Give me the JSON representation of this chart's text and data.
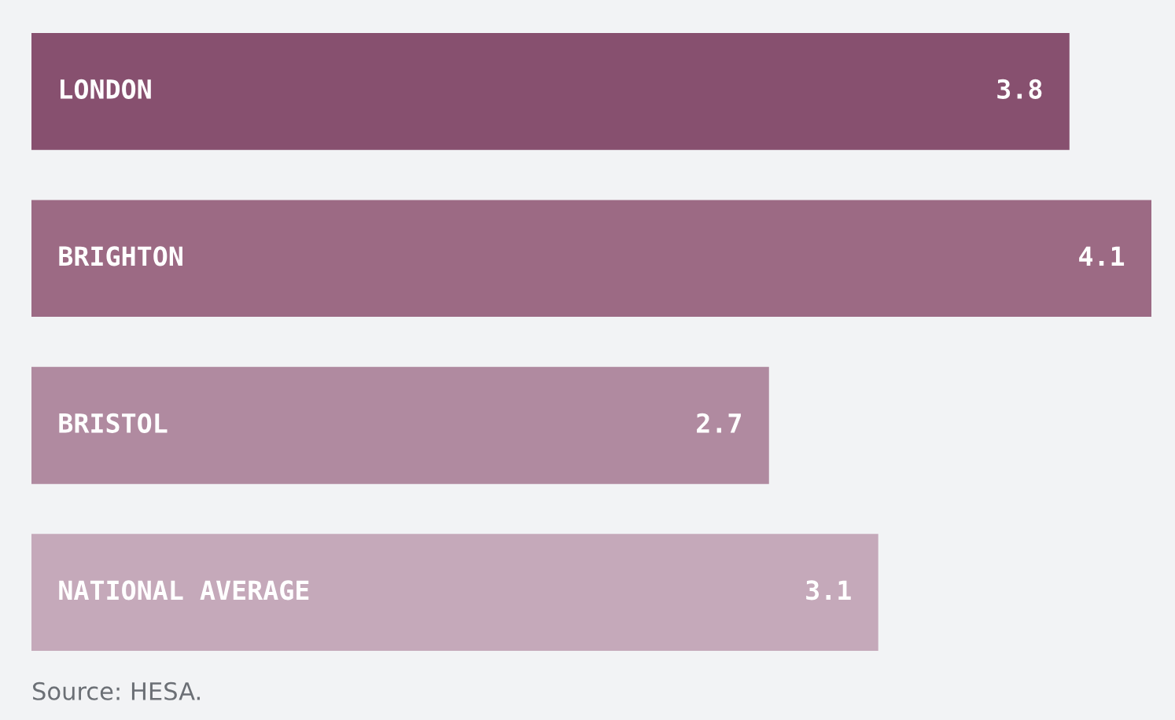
{
  "chart_data": {
    "type": "bar",
    "orientation": "horizontal",
    "categories": [
      "LONDON",
      "BRIGHTON",
      "BRISTOL",
      "NATIONAL AVERAGE"
    ],
    "values": [
      3.8,
      4.1,
      2.7,
      3.1
    ],
    "colors": [
      "#87506f",
      "#9c6a84",
      "#b08aa0",
      "#c5a9ba"
    ],
    "data_labels": true,
    "annotations": [
      "Source: HESA."
    ]
  }
}
